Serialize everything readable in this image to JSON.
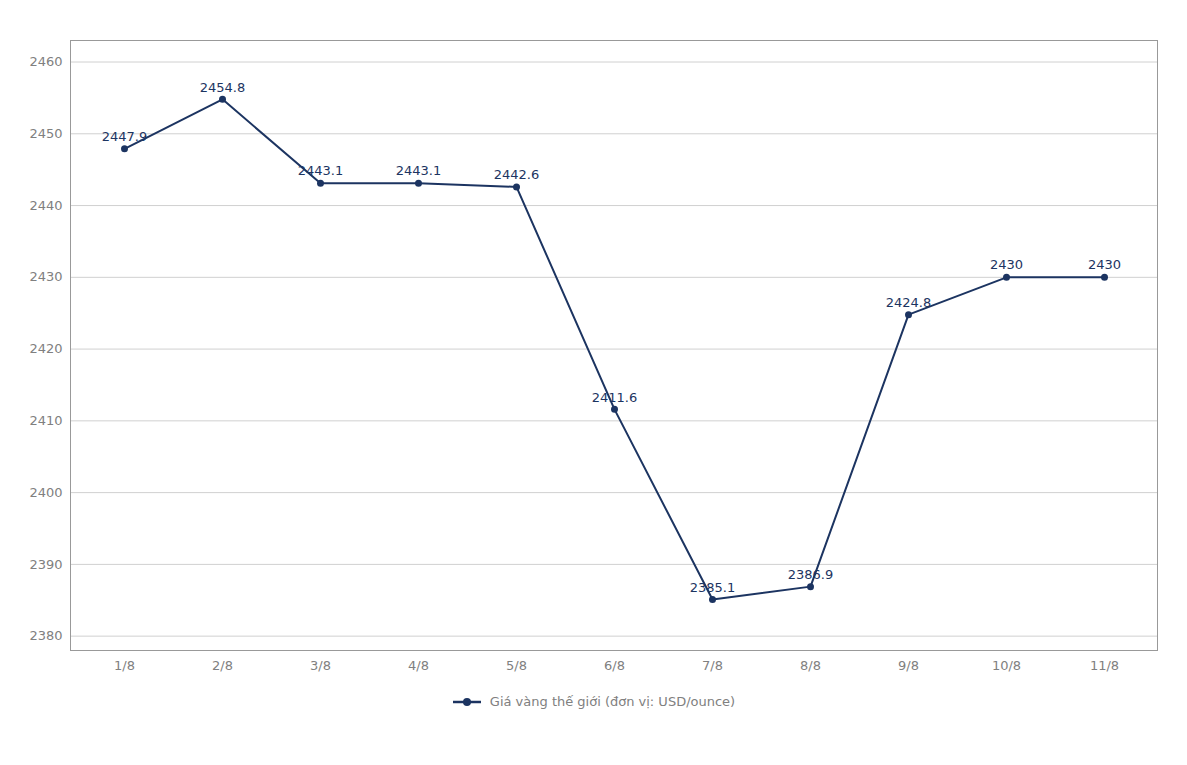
{
  "chart_data": {
    "type": "line",
    "categories": [
      "1/8",
      "2/8",
      "3/8",
      "4/8",
      "5/8",
      "6/8",
      "7/8",
      "8/8",
      "9/8",
      "10/8",
      "11/8"
    ],
    "series": [
      {
        "name": "Giá vàng thế giới (đơn vị: USD/ounce)",
        "color": "#1c3461",
        "values": [
          2447.9,
          2454.8,
          2443.1,
          2443.1,
          2442.6,
          2411.6,
          2385.1,
          2386.9,
          2424.8,
          2430.0,
          2430.0
        ]
      }
    ],
    "ylim": [
      2378,
      2463
    ],
    "yticks": [
      2380,
      2390,
      2400,
      2410,
      2420,
      2430,
      2440,
      2450,
      2460
    ],
    "grid": true,
    "legend": "bottom",
    "data_labels": true,
    "marker": "circle"
  }
}
